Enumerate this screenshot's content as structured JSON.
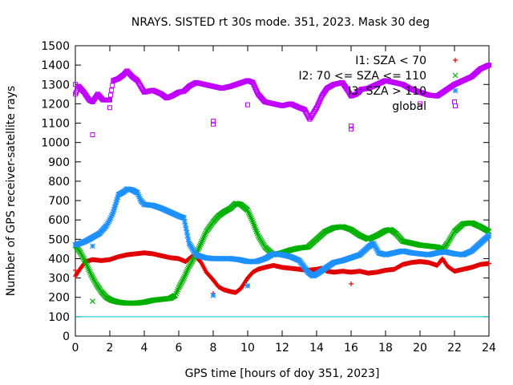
{
  "chart_data": {
    "type": "scatter",
    "title": "NRAYS. SISTED rt 30s mode. 351, 2023. Mask 30 deg",
    "xlabel": "GPS time [hours of doy 351, 2023]",
    "ylabel": "Number of GPS receiver-satellite rays",
    "xlim": [
      0,
      24
    ],
    "ylim": [
      0,
      1500
    ],
    "xticks": [
      "0",
      "2",
      "4",
      "6",
      "8",
      "10",
      "12",
      "14",
      "16",
      "18",
      "20",
      "22",
      "24"
    ],
    "yticks": [
      "0",
      "100",
      "200",
      "300",
      "400",
      "500",
      "600",
      "700",
      "800",
      "900",
      "1000",
      "1100",
      "1200",
      "1300",
      "1400",
      "1500"
    ],
    "reference_line": {
      "y": 100,
      "color": "#00c8c8"
    },
    "legend_position": "top-right",
    "series": [
      {
        "name": "I1: SZA < 70",
        "marker": "+",
        "color": "#e00000",
        "points": [
          [
            0,
            310
          ],
          [
            0.3,
            350
          ],
          [
            0.6,
            385
          ],
          [
            1,
            395
          ],
          [
            1.5,
            390
          ],
          [
            2,
            395
          ],
          [
            2.5,
            410
          ],
          [
            3,
            420
          ],
          [
            3.5,
            425
          ],
          [
            4,
            430
          ],
          [
            4.5,
            425
          ],
          [
            5,
            415
          ],
          [
            5.5,
            405
          ],
          [
            6,
            400
          ],
          [
            6.4,
            385
          ],
          [
            6.8,
            415
          ],
          [
            7,
            410
          ],
          [
            7.3,
            380
          ],
          [
            7.6,
            330
          ],
          [
            8,
            290
          ],
          [
            8.3,
            255
          ],
          [
            8.6,
            240
          ],
          [
            9,
            230
          ],
          [
            9.3,
            225
          ],
          [
            9.6,
            245
          ],
          [
            10,
            300
          ],
          [
            10.3,
            330
          ],
          [
            10.6,
            345
          ],
          [
            11,
            355
          ],
          [
            11.5,
            365
          ],
          [
            12,
            355
          ],
          [
            12.5,
            350
          ],
          [
            13,
            345
          ],
          [
            13.5,
            340
          ],
          [
            14,
            345
          ],
          [
            14.3,
            350
          ],
          [
            14.6,
            335
          ],
          [
            15,
            330
          ],
          [
            15.5,
            335
          ],
          [
            16,
            330
          ],
          [
            16.5,
            335
          ],
          [
            17,
            325
          ],
          [
            17.5,
            330
          ],
          [
            18,
            340
          ],
          [
            18.5,
            345
          ],
          [
            19,
            370
          ],
          [
            19.5,
            380
          ],
          [
            20,
            385
          ],
          [
            20.5,
            380
          ],
          [
            21,
            365
          ],
          [
            21.3,
            400
          ],
          [
            21.6,
            360
          ],
          [
            22,
            335
          ],
          [
            22.5,
            345
          ],
          [
            23,
            355
          ],
          [
            23.5,
            370
          ],
          [
            24,
            375
          ]
        ]
      },
      {
        "name": "I2: 70 <= SZA <= 110",
        "marker": "x",
        "color": "#00b000",
        "points": [
          [
            0,
            470
          ],
          [
            0.3,
            430
          ],
          [
            0.6,
            380
          ],
          [
            0.9,
            320
          ],
          [
            1.2,
            270
          ],
          [
            1.5,
            230
          ],
          [
            1.8,
            200
          ],
          [
            2.1,
            185
          ],
          [
            2.5,
            175
          ],
          [
            3,
            170
          ],
          [
            3.5,
            170
          ],
          [
            4,
            175
          ],
          [
            4.5,
            185
          ],
          [
            5,
            190
          ],
          [
            5.5,
            195
          ],
          [
            5.8,
            210
          ],
          [
            6,
            250
          ],
          [
            6.3,
            300
          ],
          [
            6.6,
            360
          ],
          [
            7,
            420
          ],
          [
            7.3,
            480
          ],
          [
            7.6,
            540
          ],
          [
            8,
            590
          ],
          [
            8.3,
            620
          ],
          [
            8.6,
            640
          ],
          [
            9,
            660
          ],
          [
            9.3,
            685
          ],
          [
            9.6,
            680
          ],
          [
            10,
            650
          ],
          [
            10.3,
            590
          ],
          [
            10.6,
            520
          ],
          [
            11,
            460
          ],
          [
            11.5,
            420
          ],
          [
            12,
            430
          ],
          [
            12.5,
            445
          ],
          [
            13,
            455
          ],
          [
            13.5,
            460
          ],
          [
            14,
            500
          ],
          [
            14.5,
            540
          ],
          [
            15,
            560
          ],
          [
            15.5,
            565
          ],
          [
            16,
            550
          ],
          [
            16.5,
            520
          ],
          [
            17,
            500
          ],
          [
            17.5,
            520
          ],
          [
            18,
            545
          ],
          [
            18.3,
            550
          ],
          [
            18.6,
            530
          ],
          [
            19,
            490
          ],
          [
            19.5,
            480
          ],
          [
            20,
            470
          ],
          [
            20.5,
            465
          ],
          [
            21,
            460
          ],
          [
            21.3,
            445
          ],
          [
            21.6,
            480
          ],
          [
            22,
            540
          ],
          [
            22.5,
            580
          ],
          [
            23,
            585
          ],
          [
            23.5,
            565
          ],
          [
            24,
            540
          ]
        ]
      },
      {
        "name": "I3: SZA > 110",
        "marker": "*",
        "color": "#1e90ff",
        "points": [
          [
            0,
            470
          ],
          [
            0.3,
            480
          ],
          [
            0.6,
            490
          ],
          [
            1,
            510
          ],
          [
            1.4,
            530
          ],
          [
            1.8,
            570
          ],
          [
            2,
            600
          ],
          [
            2.2,
            640
          ],
          [
            2.5,
            730
          ],
          [
            2.8,
            745
          ],
          [
            3,
            760
          ],
          [
            3.3,
            755
          ],
          [
            3.6,
            740
          ],
          [
            3.8,
            700
          ],
          [
            4,
            680
          ],
          [
            4.5,
            675
          ],
          [
            5,
            660
          ],
          [
            5.5,
            640
          ],
          [
            6,
            620
          ],
          [
            6.3,
            610
          ],
          [
            6.6,
            480
          ],
          [
            7,
            420
          ],
          [
            7.5,
            405
          ],
          [
            8,
            400
          ],
          [
            8.5,
            400
          ],
          [
            9,
            400
          ],
          [
            9.5,
            395
          ],
          [
            10,
            385
          ],
          [
            10.5,
            385
          ],
          [
            11,
            400
          ],
          [
            11.5,
            425
          ],
          [
            12,
            420
          ],
          [
            12.5,
            410
          ],
          [
            13,
            390
          ],
          [
            13.5,
            330
          ],
          [
            13.8,
            310
          ],
          [
            14,
            320
          ],
          [
            14.5,
            350
          ],
          [
            15,
            380
          ],
          [
            15.5,
            390
          ],
          [
            16,
            405
          ],
          [
            16.5,
            420
          ],
          [
            17,
            460
          ],
          [
            17.3,
            480
          ],
          [
            17.6,
            430
          ],
          [
            18,
            420
          ],
          [
            18.5,
            430
          ],
          [
            19,
            440
          ],
          [
            19.5,
            430
          ],
          [
            20,
            425
          ],
          [
            20.5,
            420
          ],
          [
            21,
            430
          ],
          [
            21.5,
            435
          ],
          [
            22,
            425
          ],
          [
            22.5,
            420
          ],
          [
            23,
            440
          ],
          [
            23.5,
            480
          ],
          [
            24,
            520
          ]
        ]
      },
      {
        "name": "global",
        "marker": "square",
        "color": "#c000ff",
        "points": [
          [
            0,
            1250
          ],
          [
            0.2,
            1290
          ],
          [
            0.5,
            1260
          ],
          [
            0.8,
            1220
          ],
          [
            1,
            1210
          ],
          [
            1.3,
            1250
          ],
          [
            1.6,
            1220
          ],
          [
            2,
            1220
          ],
          [
            2.2,
            1320
          ],
          [
            2.5,
            1330
          ],
          [
            2.8,
            1350
          ],
          [
            3,
            1370
          ],
          [
            3.3,
            1340
          ],
          [
            3.6,
            1320
          ],
          [
            4,
            1260
          ],
          [
            4.5,
            1270
          ],
          [
            5,
            1250
          ],
          [
            5.3,
            1230
          ],
          [
            5.6,
            1240
          ],
          [
            6,
            1260
          ],
          [
            6.3,
            1265
          ],
          [
            6.6,
            1290
          ],
          [
            7,
            1310
          ],
          [
            7.5,
            1300
          ],
          [
            8,
            1290
          ],
          [
            8.5,
            1280
          ],
          [
            9,
            1290
          ],
          [
            9.5,
            1305
          ],
          [
            10,
            1320
          ],
          [
            10.3,
            1310
          ],
          [
            10.6,
            1250
          ],
          [
            11,
            1210
          ],
          [
            11.5,
            1200
          ],
          [
            12,
            1190
          ],
          [
            12.5,
            1200
          ],
          [
            13,
            1180
          ],
          [
            13.3,
            1170
          ],
          [
            13.6,
            1120
          ],
          [
            14,
            1180
          ],
          [
            14.3,
            1240
          ],
          [
            14.6,
            1280
          ],
          [
            15,
            1300
          ],
          [
            15.5,
            1310
          ],
          [
            15.8,
            1270
          ],
          [
            16,
            1240
          ],
          [
            16.3,
            1250
          ],
          [
            16.6,
            1275
          ],
          [
            17,
            1280
          ],
          [
            17.5,
            1300
          ],
          [
            18,
            1320
          ],
          [
            18.5,
            1310
          ],
          [
            19,
            1300
          ],
          [
            19.5,
            1275
          ],
          [
            20,
            1260
          ],
          [
            20.5,
            1245
          ],
          [
            21,
            1240
          ],
          [
            21.5,
            1270
          ],
          [
            22,
            1300
          ],
          [
            22.5,
            1320
          ],
          [
            23,
            1340
          ],
          [
            23.5,
            1380
          ],
          [
            24,
            1400
          ]
        ]
      }
    ],
    "isolated_points": [
      {
        "series": "I1: SZA < 70",
        "points": [
          [
            0,
            340
          ],
          [
            16,
            270
          ],
          [
            8,
            220
          ],
          [
            10,
            260
          ]
        ]
      },
      {
        "series": "I2: 70 <= SZA <= 110",
        "points": [
          [
            1,
            180
          ]
        ]
      },
      {
        "series": "I3: SZA > 110",
        "points": [
          [
            1,
            465
          ],
          [
            8,
            210
          ],
          [
            10,
            260
          ]
        ]
      },
      {
        "series": "global",
        "points": [
          [
            1,
            1040
          ],
          [
            2,
            1180
          ],
          [
            8,
            1110
          ],
          [
            8,
            1095
          ],
          [
            10,
            1195
          ],
          [
            16,
            1085
          ],
          [
            16,
            1070
          ],
          [
            20,
            1200
          ],
          [
            22,
            1210
          ],
          [
            0,
            1300
          ]
        ]
      }
    ]
  }
}
